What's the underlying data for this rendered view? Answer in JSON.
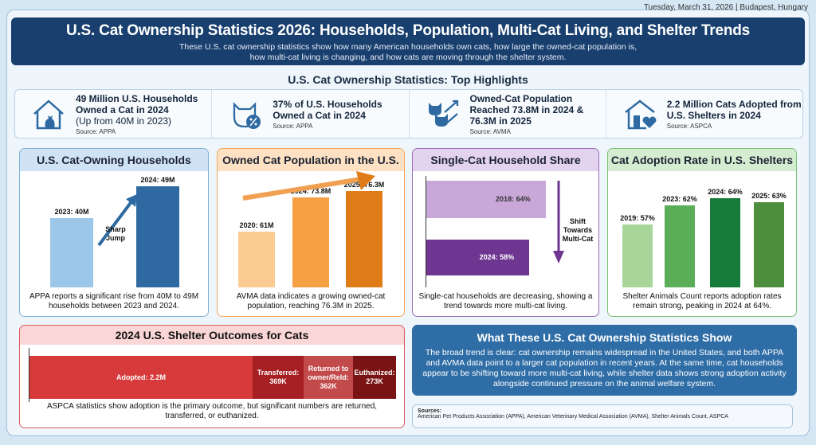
{
  "date_line": "Tuesday, March 31, 2026 | Budapest, Hungary",
  "header": {
    "title": "U.S. Cat Ownership Statistics 2026: Households, Population, Multi-Cat Living, and Shelter Trends",
    "subtitle_1": "These U.S. cat ownership statistics show how many American households own cats, how large the owned-cat population is,",
    "subtitle_2": "how multi-cat living is changing, and how cats are moving through the shelter system."
  },
  "highlights": {
    "title": "U.S. Cat Ownership Statistics: Top Highlights",
    "items": [
      {
        "icon": "house-cat-icon",
        "text": "49 Million U.S. Households Owned a Cat in 2024",
        "sub": "(Up from 40M in 2023)",
        "source": "Source: APPA"
      },
      {
        "icon": "cat-percent-icon",
        "text": "37% of U.S. Households Owned a Cat in 2024",
        "sub": "",
        "source": "Source: APPA"
      },
      {
        "icon": "cats-growth-icon",
        "text": "Owned-Cat Population Reached 73.8M in 2024 & 76.3M in 2025",
        "sub": "",
        "source": "Source: AVMA"
      },
      {
        "icon": "shelter-heart-icon",
        "text": "2.2 Million Cats Adopted from U.S. Shelters in 2024",
        "sub": "",
        "source": "Source: ASPCA"
      }
    ]
  },
  "colors": {
    "navy": "#183f6e",
    "blue": "#2f6da6"
  },
  "chart_data": [
    {
      "type": "bar",
      "title": "U.S. Cat-Owning Households",
      "categories": [
        "2023",
        "2024"
      ],
      "values": [
        40,
        49
      ],
      "labels": [
        "2023: 40M",
        "2024: 49M"
      ],
      "annotation": "Sharp Jump",
      "caption": "APPA reports a significant rise from 40M to 49M households between 2023 and 2024.",
      "colors": [
        "#9cc7e8",
        "#2e6aa1"
      ]
    },
    {
      "type": "bar",
      "title": "Owned Cat Population in the U.S.",
      "categories": [
        "2020",
        "2024",
        "2025"
      ],
      "values": [
        61,
        73.8,
        76.3
      ],
      "labels": [
        "2020: 61M",
        "2024: 73.8M",
        "2025: 76.3M"
      ],
      "caption": "AVMA data indicates a growing owned-cat population, reaching 76.3M in 2025.",
      "colors": [
        "#fbcb94",
        "#f5a043",
        "#e07c18"
      ]
    },
    {
      "type": "bar",
      "orientation": "horizontal",
      "title": "Single-Cat Household Share",
      "categories": [
        "2018",
        "2024"
      ],
      "values": [
        64,
        58
      ],
      "labels": [
        "2018: 64%",
        "2024: 58%"
      ],
      "annotation": "Shift Towards Multi-Cat",
      "caption": "Single-cat households are decreasing, showing a trend towards more multi-cat living.",
      "colors": [
        "#c9a7d8",
        "#6e3591"
      ]
    },
    {
      "type": "bar",
      "title": "Cat Adoption Rate in U.S. Shelters",
      "categories": [
        "2019",
        "2023",
        "2024",
        "2025"
      ],
      "values": [
        57,
        62,
        64,
        63
      ],
      "labels": [
        "2019: 57%",
        "2023: 62%",
        "2024: 64%",
        "2025: 63%"
      ],
      "caption": "Shelter Animals Count reports adoption rates remain strong, peaking in 2024 at 64%.",
      "colors": [
        "#a8d59a",
        "#5aae57",
        "#167a3a",
        "#4e8e3f"
      ]
    },
    {
      "type": "bar",
      "orientation": "stacked-horizontal",
      "title": "2024 U.S. Shelter Outcomes for Cats",
      "categories": [
        "Adopted",
        "Transferred",
        "Returned to owner/Reld",
        "Euthanized"
      ],
      "values": [
        2200,
        369,
        362,
        273
      ],
      "unit": "K",
      "labels": [
        "Adopted: 2.2M",
        "Transferred: 369K",
        "Returned to owner/Reld: 362K",
        "Euthanized: 273K"
      ],
      "caption": "ASPCA statistics show adoption is the primary outcome, but significant numbers are returned, transferred, or euthanized.",
      "colors": [
        "#d63a3a",
        "#a61f22",
        "#c24a4a",
        "#7a1414"
      ]
    }
  ],
  "summary": {
    "title": "What These U.S. Cat Ownership Statistics Show",
    "text": "The broad trend is clear: cat ownership remains widespread in the United States, and both APPA and AVMA data point to a larger cat population in recent years. At the same time, cat households appear to be shifting toward more multi-cat living, while shelter data shows strong adoption activity alongside continued pressure on the animal welfare system."
  },
  "sources": {
    "label": "Sources:",
    "text": "American Pet Products Association (APPA), American Veterinary Medical Association (AVMA), Shelter Animals Count, ASPCA"
  }
}
